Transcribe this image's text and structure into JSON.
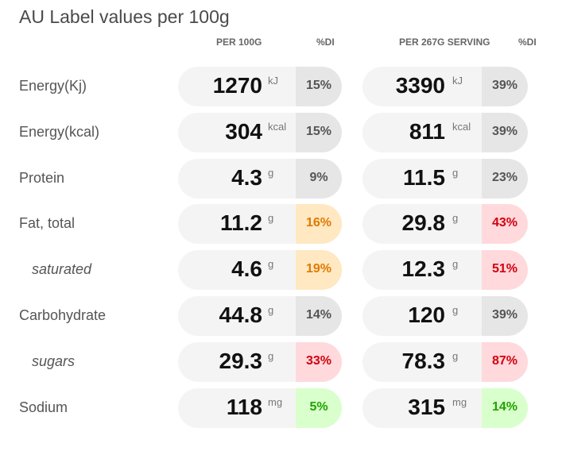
{
  "title": "AU Label values per 100g",
  "headers": {
    "per100g": "PER 100G",
    "di1": "%DI",
    "perServing": "PER 267G SERVING",
    "di2": "%DI"
  },
  "rows": [
    {
      "label": "Energy(Kj)",
      "sub": false,
      "v1": "1270",
      "u1": "kJ",
      "d1": "15%",
      "c1": "neutral",
      "v2": "3390",
      "u2": "kJ",
      "d2": "39%",
      "c2": "neutral"
    },
    {
      "label": "Energy(kcal)",
      "sub": false,
      "v1": "304",
      "u1": "kcal",
      "d1": "15%",
      "c1": "neutral",
      "v2": "811",
      "u2": "kcal",
      "d2": "39%",
      "c2": "neutral"
    },
    {
      "label": "Protein",
      "sub": false,
      "v1": "4.3",
      "u1": "g",
      "d1": "9%",
      "c1": "neutral",
      "v2": "11.5",
      "u2": "g",
      "d2": "23%",
      "c2": "neutral"
    },
    {
      "label": "Fat, total",
      "sub": false,
      "v1": "11.2",
      "u1": "g",
      "d1": "16%",
      "c1": "medium",
      "v2": "29.8",
      "u2": "g",
      "d2": "43%",
      "c2": "high"
    },
    {
      "label": "saturated",
      "sub": true,
      "v1": "4.6",
      "u1": "g",
      "d1": "19%",
      "c1": "medium",
      "v2": "12.3",
      "u2": "g",
      "d2": "51%",
      "c2": "high"
    },
    {
      "label": "Carbohydrate",
      "sub": false,
      "v1": "44.8",
      "u1": "g",
      "d1": "14%",
      "c1": "neutral",
      "v2": "120",
      "u2": "g",
      "d2": "39%",
      "c2": "neutral"
    },
    {
      "label": "sugars",
      "sub": true,
      "v1": "29.3",
      "u1": "g",
      "d1": "33%",
      "c1": "high",
      "v2": "78.3",
      "u2": "g",
      "d2": "87%",
      "c2": "high"
    },
    {
      "label": "Sodium",
      "sub": false,
      "v1": "118",
      "u1": "mg",
      "d1": "5%",
      "c1": "low",
      "v2": "315",
      "u2": "mg",
      "d2": "14%",
      "c2": "low"
    }
  ],
  "colors": {
    "neutral": "#e6e6e6",
    "medium": "#ffe8c2",
    "high": "#ffd9dc",
    "low": "#d9ffcc"
  }
}
